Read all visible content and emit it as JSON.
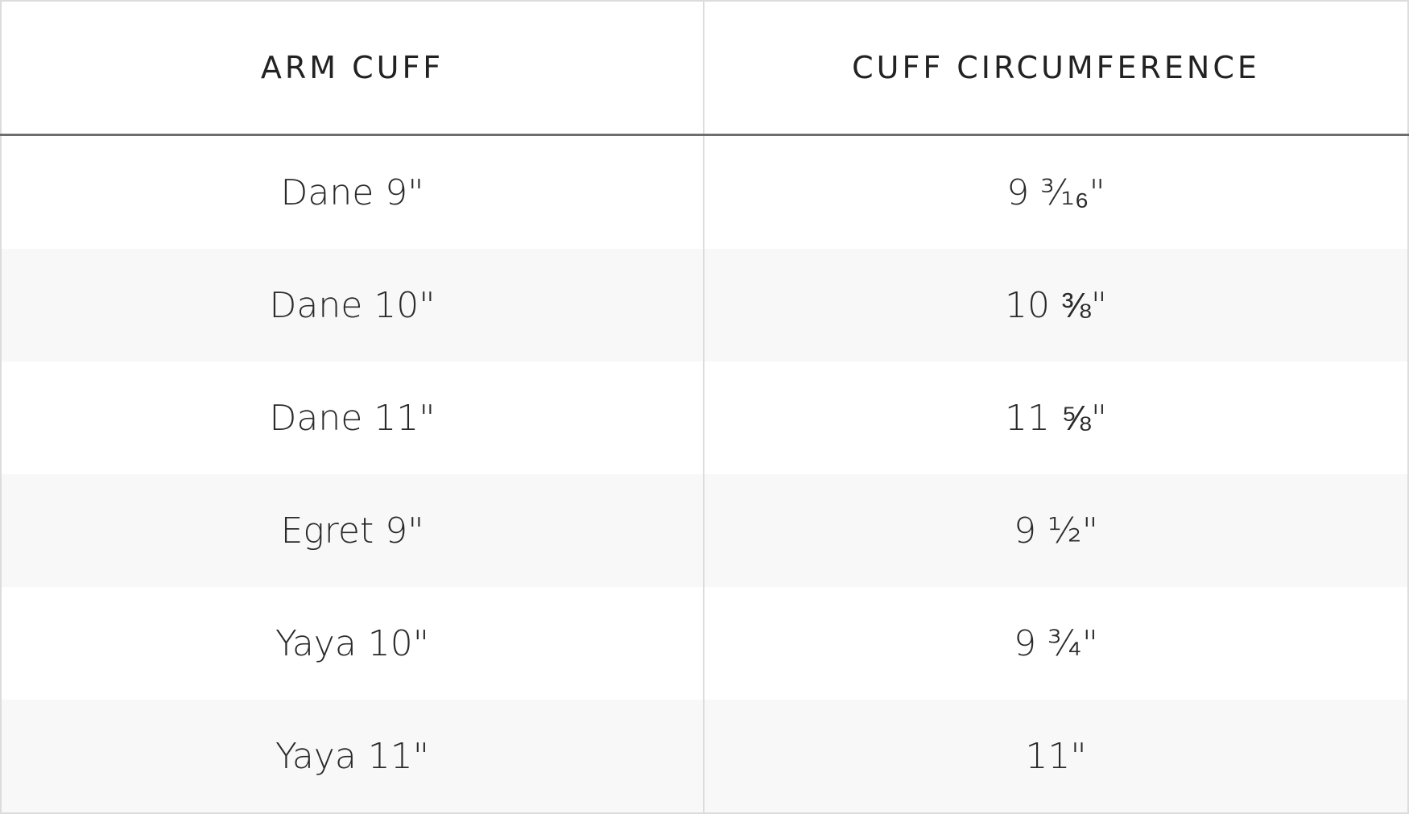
{
  "table": {
    "headers": [
      "ARM CUFF",
      "CUFF CIRCUMFERENCE"
    ],
    "rows": [
      [
        "Dane 9\"",
        "9 ³⁄₁₆\""
      ],
      [
        "Dane 10\"",
        "10 ⅜\""
      ],
      [
        "Dane 11\"",
        "11 ⅝\""
      ],
      [
        "Egret 9\"",
        "9 ½\""
      ],
      [
        "Yaya 10\"",
        "9 ¾\""
      ],
      [
        "Yaya 11\"",
        "11\""
      ]
    ],
    "colors": {
      "header_rule": "#6e6e6e",
      "alt_row": "#f9f8f8",
      "border": "#dcdcdc"
    }
  }
}
